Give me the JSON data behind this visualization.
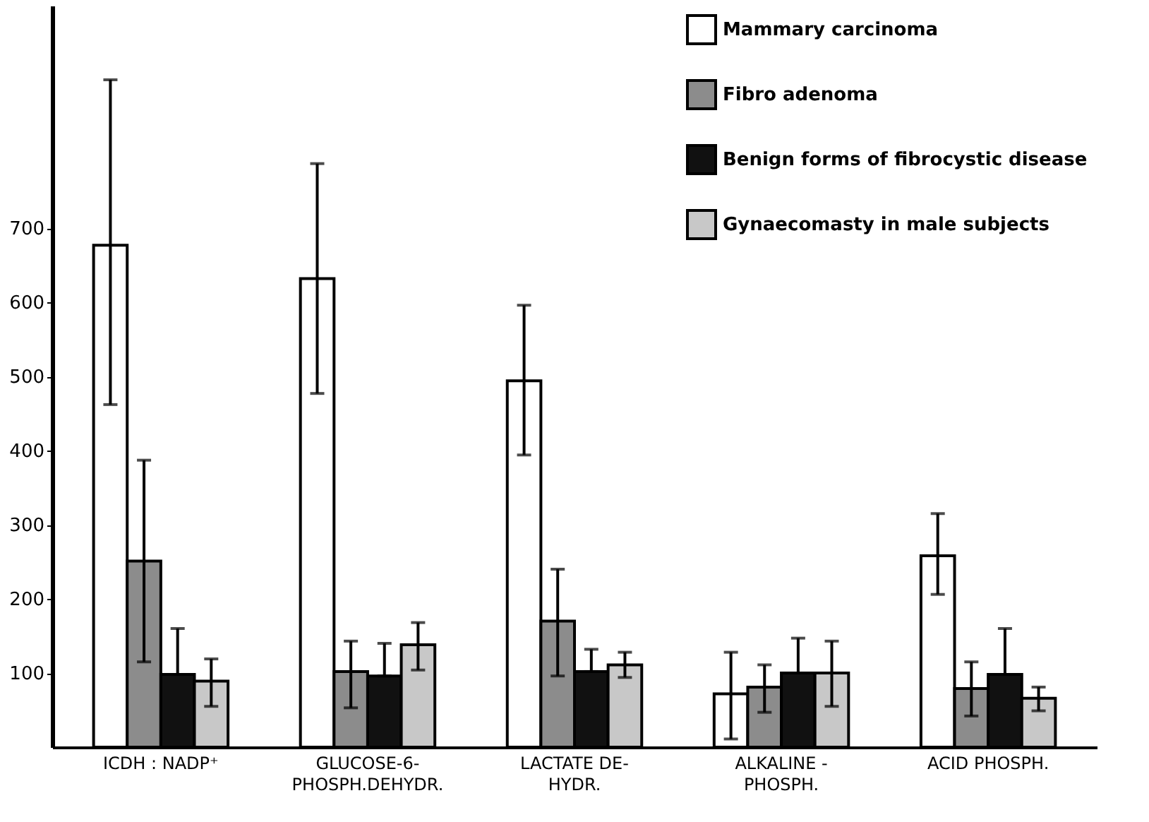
{
  "chart_data": {
    "type": "bar",
    "categories": [
      "ICDH : NADP⁺",
      "GLUCOSE-6-\nPHOSPH.DEHYDR.",
      "LACTATE DE-\nHYDR.",
      "ALKALINE -\nPHOSPH.",
      "ACID PHOSPH."
    ],
    "series": [
      {
        "name": "Mammary carcinoma",
        "color": "#ffffff",
        "values": [
          677,
          632,
          494,
          72,
          258
        ],
        "errors": [
          [
            462,
            900
          ],
          [
            477,
            787
          ],
          [
            394,
            596
          ],
          [
            11,
            128
          ],
          [
            206,
            315
          ]
        ]
      },
      {
        "name": "Fibro adenoma",
        "color": "#8c8c8c",
        "values": [
          251,
          102,
          170,
          81,
          79
        ],
        "errors": [
          [
            115,
            387
          ],
          [
            53,
            143
          ],
          [
            96,
            240
          ],
          [
            47,
            111
          ],
          [
            42,
            115
          ]
        ]
      },
      {
        "name": "Benign forms of fibrocystic disease",
        "color": "#111111",
        "values": [
          98,
          96,
          102,
          100,
          98
        ],
        "errors": [
          [
            98,
            160
          ],
          [
            96,
            140
          ],
          [
            102,
            132
          ],
          [
            100,
            147
          ],
          [
            98,
            160
          ]
        ]
      },
      {
        "name": "Gynaecomasty in male subjects",
        "color": "#c8c8c8",
        "values": [
          89,
          138,
          111,
          100,
          66
        ],
        "errors": [
          [
            55,
            119
          ],
          [
            104,
            168
          ],
          [
            94,
            128
          ],
          [
            55,
            143
          ],
          [
            49,
            81
          ]
        ]
      }
    ],
    "ylim": [
      0,
      1000
    ],
    "yticks": [
      100,
      200,
      300,
      400,
      500,
      600,
      700
    ],
    "grid": false,
    "legend": "top right"
  }
}
